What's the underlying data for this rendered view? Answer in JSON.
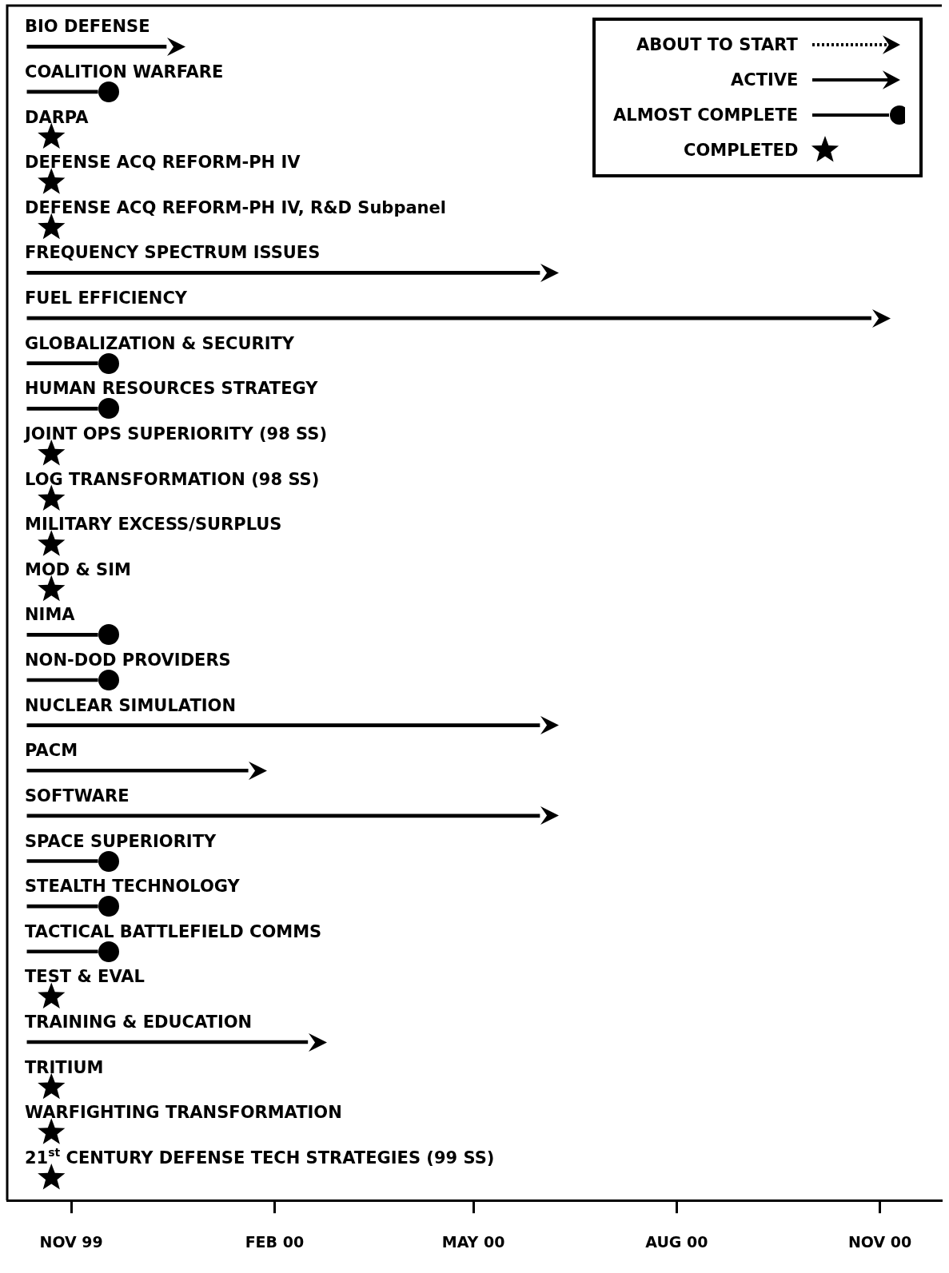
{
  "chart_data": {
    "type": "bar",
    "orientation": "horizontal",
    "grid": false,
    "legend": "top right",
    "categories": [
      "BIO DEFENSE",
      "COALITION WARFARE",
      "DARPA",
      "DEFENSE ACQ REFORM-PH IV",
      "DEFENSE ACQ REFORM-PH IV, R&D Subpanel",
      "FREQUENCY SPECTRUM ISSUES",
      "FUEL EFFICIENCY",
      "GLOBALIZATION & SECURITY",
      "HUMAN RESOURCES STRATEGY",
      "JOINT OPS SUPERIORITY (98 SS)",
      "LOG TRANSFORMATION (98 SS)",
      "MILITARY EXCESS/SURPLUS",
      "MOD & SIM",
      "NIMA",
      "NON-DOD PROVIDERS",
      "NUCLEAR SIMULATION",
      "PACM",
      "SOFTWARE",
      "SPACE SUPERIORITY",
      "STEALTH TECHNOLOGY",
      "TACTICAL BATTLEFIELD COMMS",
      "TEST & EVAL",
      "TRAINING & EDUCATION",
      "TRITIUM",
      "WARFIGHTING TRANSFORMATION",
      "21$^{st}$ CENTURY DEFENSE TECH STRATEGIES (99 SS)"
    ],
    "xlim": [
      "1999-10-03",
      "2000-11-29"
    ],
    "xticks": [
      {
        "value": "1999-11-01",
        "label": "NOV 99"
      },
      {
        "value": "2000-02-01",
        "label": "FEB 00"
      },
      {
        "value": "2000-05-01",
        "label": "MAY 00"
      },
      {
        "value": "2000-08-01",
        "label": "AUG 00"
      },
      {
        "value": "2000-11-01",
        "label": "NOV 00"
      }
    ],
    "series": [
      {
        "name": "ABOUT TO START",
        "color": "#000000",
        "line_style": "dotted",
        "marker": "triangle",
        "values": [
          null,
          null,
          null,
          null,
          null,
          null,
          null,
          null,
          null,
          null,
          null,
          null,
          null,
          null,
          null,
          null,
          null,
          null,
          null,
          null,
          null,
          null,
          null,
          null,
          null,
          null
        ]
      },
      {
        "name": "ACTIVE",
        "color": "#000000",
        "line_style": "solid",
        "marker": "triangle",
        "base": [
          10876,
          null,
          null,
          null,
          null,
          10876,
          10876,
          null,
          null,
          null,
          null,
          null,
          null,
          null,
          null,
          10876,
          10876,
          10876,
          null,
          null,
          null,
          null,
          10876,
          null,
          null,
          null
        ],
        "values": [
          63,
          null,
          null,
          null,
          null,
          232,
          382,
          null,
          null,
          null,
          null,
          null,
          null,
          null,
          null,
          232,
          100,
          232,
          null,
          null,
          null,
          null,
          127,
          null,
          null,
          null
        ]
      },
      {
        "name": "ALMOST COMPLETE",
        "color": "#000000",
        "line_style": "solid",
        "marker": "circle",
        "base": [
          null,
          10876,
          null,
          null,
          null,
          null,
          null,
          10876,
          10876,
          null,
          null,
          null,
          null,
          10876,
          10876,
          null,
          null,
          null,
          10876,
          10876,
          10876,
          null,
          null,
          null,
          null,
          null
        ],
        "values": [
          null,
          32,
          null,
          null,
          null,
          null,
          null,
          32,
          32,
          null,
          null,
          null,
          null,
          32,
          32,
          null,
          null,
          null,
          32,
          32,
          32,
          null,
          null,
          null,
          null,
          null
        ]
      },
      {
        "name": "COMPLETED",
        "type": "scatter",
        "color": "#000000",
        "marker": "star",
        "values": [
          null,
          null,
          10887,
          10887,
          10887,
          null,
          null,
          null,
          null,
          10887,
          10887,
          10887,
          10887,
          null,
          null,
          null,
          null,
          null,
          null,
          null,
          null,
          10887,
          null,
          10887,
          10887,
          10887
        ]
      }
    ]
  }
}
